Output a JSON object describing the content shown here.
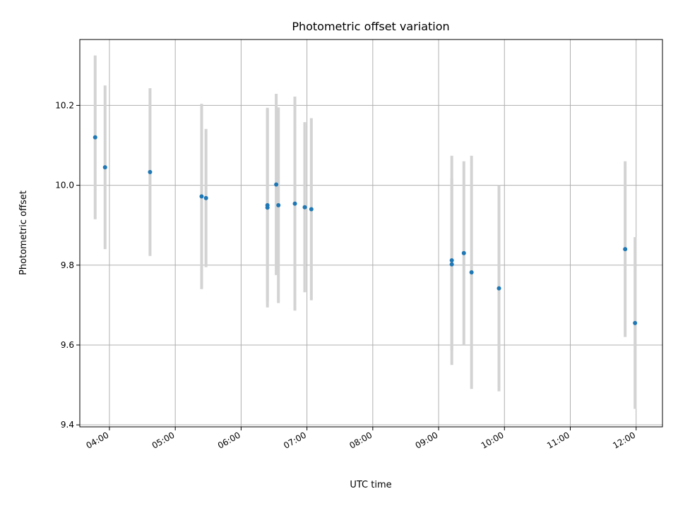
{
  "chart_data": {
    "type": "scatter",
    "title": "Photometric offset variation",
    "xlabel": "UTC time",
    "ylabel": "Photometric offset",
    "xlim": [
      "03:33",
      "12:24"
    ],
    "ylim": [
      9.395,
      10.365
    ],
    "x_ticks": [
      "04:00",
      "05:00",
      "06:00",
      "07:00",
      "08:00",
      "09:00",
      "10:00",
      "11:00",
      "12:00"
    ],
    "y_ticks": [
      9.4,
      9.6,
      9.8,
      10.0,
      10.2
    ],
    "y_tick_labels": [
      "9.4",
      "9.6",
      "9.8",
      "10.0",
      "10.2"
    ],
    "grid": true,
    "marker_color": "#1f77b4",
    "errorbar_color": "#d3d3d3",
    "points": [
      {
        "time": "03:47",
        "offset": 10.12,
        "error": 0.205
      },
      {
        "time": "03:56",
        "offset": 10.045,
        "error": 0.205
      },
      {
        "time": "04:37",
        "offset": 10.033,
        "error": 0.21
      },
      {
        "time": "05:24",
        "offset": 9.972,
        "error": 0.232
      },
      {
        "time": "05:28",
        "offset": 9.968,
        "error": 0.173
      },
      {
        "time": "06:24",
        "offset": 9.944,
        "error": 0.25
      },
      {
        "time": "06:24",
        "offset": 9.95,
        "error": 0.24
      },
      {
        "time": "06:32",
        "offset": 10.002,
        "error": 0.227
      },
      {
        "time": "06:34",
        "offset": 9.95,
        "error": 0.245
      },
      {
        "time": "06:49",
        "offset": 9.954,
        "error": 0.268
      },
      {
        "time": "06:58",
        "offset": 9.945,
        "error": 0.213
      },
      {
        "time": "07:04",
        "offset": 9.94,
        "error": 0.228
      },
      {
        "time": "09:12",
        "offset": 9.812,
        "error": 0.262
      },
      {
        "time": "09:12",
        "offset": 9.802,
        "error": 0.215
      },
      {
        "time": "09:23",
        "offset": 9.83,
        "error": 0.23
      },
      {
        "time": "09:30",
        "offset": 9.782,
        "error": 0.292
      },
      {
        "time": "09:55",
        "offset": 9.742,
        "error": 0.258
      },
      {
        "time": "11:50",
        "offset": 9.84,
        "error": 0.22
      },
      {
        "time": "11:59",
        "offset": 9.655,
        "error": 0.215
      }
    ]
  }
}
